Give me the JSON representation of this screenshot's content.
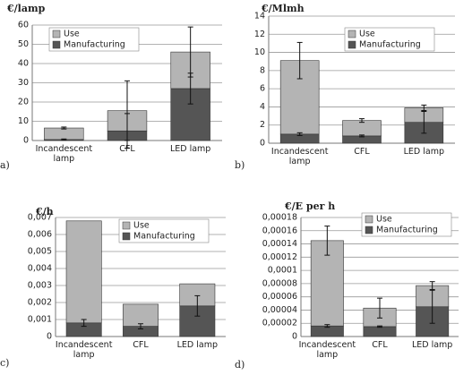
{
  "chart_data": [
    {
      "type": "bar",
      "panel": "a)",
      "title": "€/lamp",
      "stacked": true,
      "grid": true,
      "categories": [
        "Incandescent lamp",
        "CFL",
        "LED lamp"
      ],
      "series": [
        {
          "name": "Use",
          "color": "#b4b4b4",
          "values": [
            6,
            10.5,
            19
          ],
          "errors": [
            0.5,
            15.5,
            13
          ]
        },
        {
          "name": "Manufacturing",
          "color": "#555555",
          "values": [
            0.5,
            5,
            27
          ],
          "errors": [
            0.3,
            9,
            8
          ]
        }
      ],
      "ylim": [
        0,
        60
      ],
      "yticks": [
        0,
        10,
        20,
        30,
        40,
        50,
        60
      ]
    },
    {
      "type": "bar",
      "panel": "b)",
      "title": "€/Mlmh",
      "stacked": true,
      "grid": true,
      "categories": [
        "Incandescent lamp",
        "CFL",
        "LED lamp"
      ],
      "series": [
        {
          "name": "Use",
          "color": "#b4b4b4",
          "values": [
            8.1,
            1.7,
            1.6
          ],
          "errors": [
            2,
            0.2,
            0.3
          ]
        },
        {
          "name": "Manufacturing",
          "color": "#555555",
          "values": [
            1,
            0.8,
            2.3
          ],
          "errors": [
            0.15,
            0.1,
            1.2
          ]
        }
      ],
      "ylim": [
        0,
        14
      ],
      "yticks": [
        0,
        2,
        4,
        6,
        8,
        10,
        12,
        14
      ]
    },
    {
      "type": "bar",
      "panel": "c)",
      "title": "€/h",
      "stacked": true,
      "grid": true,
      "categories": [
        "Incandescent lamp",
        "CFL",
        "LED lamp"
      ],
      "series": [
        {
          "name": "Use",
          "color": "#b4b4b4",
          "values": [
            0.006,
            0.0013,
            0.0013
          ]
        },
        {
          "name": "Manufacturing",
          "color": "#555555",
          "values": [
            0.0008,
            0.0006,
            0.0018
          ],
          "errors": [
            0.0002,
            0.00015,
            0.0006
          ]
        }
      ],
      "ylim": [
        0,
        0.007
      ],
      "yticks": [
        0,
        {
          "value": 0.001,
          "label": "0,001"
        },
        {
          "value": 0.002,
          "label": "0,002"
        },
        {
          "value": 0.003,
          "label": "0,003"
        },
        {
          "value": 0.004,
          "label": "0,004"
        },
        {
          "value": 0.005,
          "label": "0,005"
        },
        {
          "value": 0.006,
          "label": "0,006"
        },
        {
          "value": 0.007,
          "label": "0,007"
        }
      ]
    },
    {
      "type": "bar",
      "panel": "d)",
      "title": "€/E per h",
      "stacked": true,
      "grid": true,
      "categories": [
        "Incandescent lamp",
        "CFL",
        "LED lamp"
      ],
      "series": [
        {
          "name": "Use",
          "color": "#b4b4b4",
          "values": [
            0.000129,
            2.8e-05,
            3.2e-05
          ],
          "errors": [
            2.2e-05,
            1.5e-05,
            6e-06
          ]
        },
        {
          "name": "Manufacturing",
          "color": "#555555",
          "values": [
            1.6e-05,
            1.5e-05,
            4.5e-05
          ],
          "errors": [
            2e-06,
            1e-06,
            2.5e-05
          ]
        }
      ],
      "ylim": [
        0,
        0.00018
      ],
      "yticks": [
        0,
        {
          "value": 2e-05,
          "label": "0,00002"
        },
        {
          "value": 4e-05,
          "label": "0,00004"
        },
        {
          "value": 6e-05,
          "label": "0,00006"
        },
        {
          "value": 8e-05,
          "label": "0,00008"
        },
        {
          "value": 0.0001,
          "label": "0,0001"
        },
        {
          "value": 0.00012,
          "label": "0,00012"
        },
        {
          "value": 0.00014,
          "label": "0,00014"
        },
        {
          "value": 0.00016,
          "label": "0,00016"
        },
        {
          "value": 0.00018,
          "label": "0,00018"
        }
      ]
    }
  ]
}
